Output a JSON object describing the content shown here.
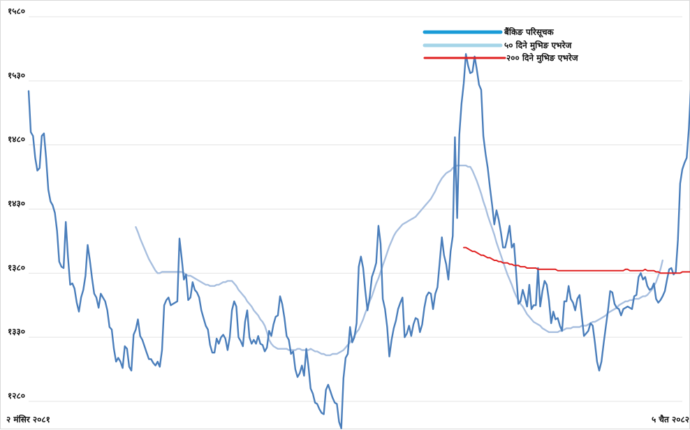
{
  "chart_data": {
    "type": "line",
    "title": "",
    "xlabel": "",
    "ylabel": "",
    "ylim": [
      1280,
      1580
    ],
    "yticks": [
      1280,
      1330,
      1380,
      1430,
      1480,
      1530,
      1580
    ],
    "ytick_labels": [
      "१२८०",
      "१३३०",
      "१३८०",
      "१४३०",
      "१४८०",
      "१५३०",
      "१५८०"
    ],
    "x_start_label": "२ मंसिर २०८१",
    "x_end_label": "५ चैत २०८२",
    "grid": "horizontal",
    "legend_position": "top-right",
    "n_points": 300,
    "series": [
      {
        "name": "बैंकिङ परिसूचक",
        "legend_color": "#1a9bd7",
        "line_color": "#4a7ebb",
        "start_index": 0,
        "values": [
          1522,
          1490,
          1487,
          1470,
          1460,
          1462,
          1487,
          1489,
          1470,
          1445,
          1436,
          1433,
          1427,
          1413,
          1389,
          1385,
          1384,
          1420,
          1393,
          1371,
          1372,
          1368,
          1357,
          1350,
          1361,
          1367,
          1378,
          1402,
          1390,
          1376,
          1364,
          1361,
          1353,
          1364,
          1361,
          1358,
          1351,
          1338,
          1336,
          1321,
          1311,
          1314,
          1311,
          1306,
          1323,
          1321,
          1307,
          1304,
          1332,
          1336,
          1344,
          1331,
          1328,
          1323,
          1318,
          1313,
          1313,
          1310,
          1308,
          1311,
          1307,
          1320,
          1355,
          1359,
          1361,
          1355,
          1356,
          1357,
          1358,
          1407,
          1392,
          1375,
          1379,
          1359,
          1361,
          1373,
          1367,
          1365,
          1361,
          1351,
          1345,
          1339,
          1336,
          1324,
          1318,
          1318,
          1329,
          1325,
          1330,
          1332,
          1329,
          1320,
          1330,
          1351,
          1358,
          1354,
          1330,
          1327,
          1323,
          1342,
          1351,
          1330,
          1325,
          1328,
          1325,
          1331,
          1325,
          1324,
          1319,
          1322,
          1335,
          1331,
          1340,
          1346,
          1347,
          1362,
          1356,
          1345,
          1331,
          1328,
          1317,
          1319,
          1305,
          1299,
          1302,
          1308,
          1300,
          1321,
          1307,
          1290,
          1286,
          1279,
          1278,
          1274,
          1271,
          1270,
          1289,
          1293,
          1288,
          1283,
          1279,
          1278,
          1264,
          1259,
          1298,
          1314,
          1317,
          1338,
          1326,
          1330,
          1341,
          1385,
          1393,
          1384,
          1366,
          1351,
          1361,
          1377,
          1382,
          1388,
          1417,
          1403,
          1360,
          1352,
          1338,
          1315,
          1328,
          1337,
          1343,
          1352,
          1357,
          1361,
          1330,
          1333,
          1339,
          1331,
          1340,
          1345,
          1344,
          1334,
          1340,
          1353,
          1362,
          1365,
          1364,
          1352,
          1364,
          1369,
          1388,
          1408,
          1394,
          1387,
          1375,
          1397,
          1409,
          1486,
          1423,
          1488,
          1512,
          1528,
          1551,
          1542,
          1536,
          1537,
          1549,
          1539,
          1527,
          1523,
          1487,
          1473,
          1462,
          1447,
          1433,
          1418,
          1429,
          1422,
          1412,
          1400,
          1400,
          1408,
          1417,
          1400,
          1403,
          1380,
          1356,
          1358,
          1367,
          1361,
          1354,
          1371,
          1352,
          1355,
          1355,
          1384,
          1354,
          1366,
          1374,
          1371,
          1359,
          1341,
          1350,
          1344,
          1345,
          1339,
          1335,
          1358,
          1358,
          1370,
          1360,
          1357,
          1351,
          1360,
          1363,
          1347,
          1331,
          1333,
          1335,
          1341,
          1339,
          1326,
          1311,
          1304,
          1311,
          1325,
          1338,
          1351,
          1366,
          1365,
          1356,
          1353,
          1352,
          1347,
          1352,
          1353,
          1354,
          1353,
          1352,
          1362,
          1363,
          1377,
          1380,
          1375,
          1377,
          1370,
          1367,
          1368,
          1372,
          1360,
          1357,
          1359,
          1362,
          1366,
          1375,
          1383,
          1384,
          1379,
          1381,
          1406,
          1450,
          1461,
          1466,
          1470,
          1493,
          1527
        ]
      },
      {
        "name": "५० दिने मुभिङ एभरेज",
        "legend_color": "#a5d5e8",
        "line_color": "#a8bfdf",
        "start_index": 49,
        "values": [
          1416,
          1412,
          1407,
          1403,
          1399,
          1395,
          1391,
          1388,
          1385,
          1382,
          1380,
          1380,
          1381,
          1381,
          1381,
          1381,
          1381,
          1381,
          1381,
          1381,
          1381,
          1381,
          1380,
          1379,
          1378,
          1378,
          1377,
          1376,
          1375,
          1374,
          1373,
          1372,
          1371,
          1371,
          1370,
          1370,
          1370,
          1371,
          1371,
          1372,
          1373,
          1373,
          1374,
          1374,
          1374,
          1372,
          1370,
          1367,
          1365,
          1363,
          1361,
          1358,
          1356,
          1354,
          1351,
          1349,
          1347,
          1344,
          1342,
          1339,
          1334,
          1328,
          1325,
          1323,
          1322,
          1321,
          1321,
          1321,
          1321,
          1321,
          1320,
          1320,
          1320,
          1320,
          1321,
          1321,
          1320,
          1320,
          1320,
          1320,
          1321,
          1320,
          1319,
          1319,
          1318,
          1317,
          1317,
          1316,
          1316,
          1316,
          1317,
          1317,
          1317,
          1318,
          1319,
          1320,
          1322,
          1324,
          1326,
          1329,
          1331,
          1334,
          1336,
          1340,
          1344,
          1349,
          1353,
          1358,
          1362,
          1367,
          1372,
          1376,
          1381,
          1386,
          1391,
          1396,
          1401,
          1405,
          1409,
          1412,
          1414,
          1416,
          1418,
          1419,
          1420,
          1421,
          1422,
          1423,
          1424,
          1426,
          1428,
          1430,
          1432,
          1434,
          1436,
          1438,
          1441,
          1444,
          1448,
          1451,
          1454,
          1456,
          1458,
          1459,
          1460,
          1462,
          1463,
          1464,
          1464,
          1464,
          1464,
          1464,
          1463,
          1463,
          1460,
          1456,
          1452,
          1447,
          1442,
          1436,
          1431,
          1425,
          1420,
          1415,
          1410,
          1404,
          1399,
          1394,
          1389,
          1384,
          1379,
          1375,
          1371,
          1366,
          1362,
          1359,
          1356,
          1354,
          1351,
          1348,
          1346,
          1344,
          1342,
          1341,
          1340,
          1339,
          1337,
          1336,
          1335,
          1334,
          1334,
          1334,
          1334,
          1334,
          1335,
          1335,
          1336,
          1337,
          1337,
          1337,
          1338,
          1338,
          1338,
          1338,
          1339,
          1339,
          1339,
          1340,
          1341,
          1342,
          1342,
          1343,
          1344,
          1345,
          1346,
          1347,
          1349,
          1350,
          1351,
          1352,
          1353,
          1355,
          1356,
          1357,
          1358,
          1358,
          1359,
          1359,
          1360,
          1360,
          1360,
          1361,
          1362,
          1362,
          1363,
          1365,
          1367,
          1370,
          1373,
          1378,
          1383,
          1390
        ]
      },
      {
        "name": "२०० दिने मुभिङ एभरेज",
        "legend_color": "#e02020",
        "line_color": "#e02020",
        "start_index": 199,
        "values": [
          1400,
          1400,
          1399,
          1398,
          1397,
          1397,
          1396,
          1395,
          1394,
          1394,
          1393,
          1392,
          1392,
          1391,
          1390,
          1390,
          1389,
          1389,
          1388,
          1388,
          1388,
          1387,
          1387,
          1386,
          1386,
          1386,
          1385,
          1385,
          1385,
          1384,
          1384,
          1384,
          1384,
          1384,
          1383,
          1383,
          1383,
          1383,
          1383,
          1383,
          1383,
          1383,
          1383,
          1382,
          1382,
          1382,
          1382,
          1382,
          1382,
          1382,
          1382,
          1382,
          1382,
          1382,
          1382,
          1382,
          1382,
          1382,
          1382,
          1382,
          1382,
          1382,
          1382,
          1382,
          1382,
          1382,
          1382,
          1382,
          1382,
          1382,
          1382,
          1382,
          1382,
          1382,
          1383,
          1383,
          1382,
          1382,
          1382,
          1382,
          1382,
          1382,
          1382,
          1383,
          1382,
          1382,
          1382,
          1382,
          1381,
          1381,
          1380,
          1380,
          1380,
          1380,
          1380,
          1380,
          1380,
          1380,
          1380,
          1380,
          1381,
          1381,
          1381,
          1381,
          1381,
          1381,
          1382,
          1384,
          1385,
          1386,
          1388
        ]
      }
    ]
  }
}
